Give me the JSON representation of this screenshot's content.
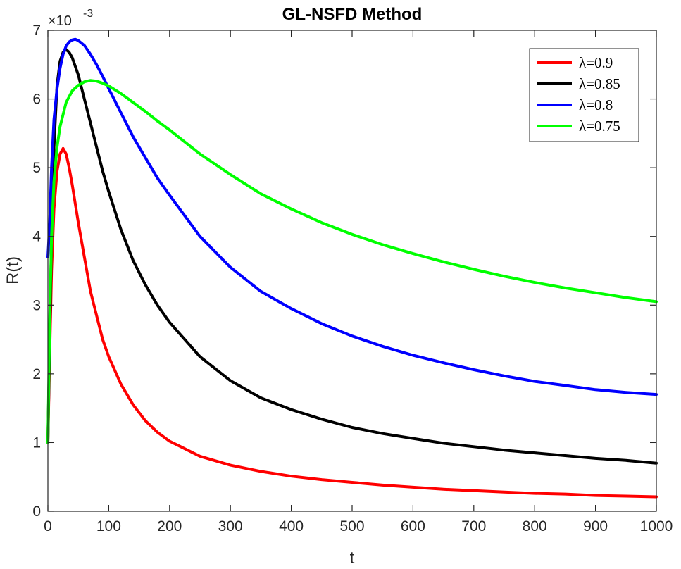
{
  "chart_data": {
    "type": "line",
    "title": "GL-NSFD Method",
    "xlabel": "t",
    "ylabel": "R(t)",
    "y_exponent_label": "×10",
    "y_exponent_power": "-3",
    "xlim": [
      0,
      1000
    ],
    "ylim": [
      0,
      7
    ],
    "xticks": [
      0,
      100,
      200,
      300,
      400,
      500,
      600,
      700,
      800,
      900,
      1000
    ],
    "yticks": [
      0,
      1,
      2,
      3,
      4,
      5,
      6,
      7
    ],
    "y_scale_factor": 0.001,
    "grid": false,
    "legend_position": "top-right",
    "series": [
      {
        "name": "λ=0.9",
        "color": "#ff0000",
        "x": [
          0,
          3,
          6,
          10,
          15,
          20,
          25,
          30,
          35,
          40,
          50,
          60,
          70,
          80,
          90,
          100,
          120,
          140,
          160,
          180,
          200,
          250,
          300,
          350,
          400,
          450,
          500,
          550,
          600,
          650,
          700,
          750,
          800,
          850,
          900,
          950,
          1000
        ],
        "y": [
          1.0,
          2.3,
          3.5,
          4.4,
          4.95,
          5.2,
          5.28,
          5.2,
          5.0,
          4.75,
          4.2,
          3.7,
          3.2,
          2.85,
          2.5,
          2.25,
          1.85,
          1.55,
          1.32,
          1.15,
          1.02,
          0.8,
          0.67,
          0.58,
          0.51,
          0.46,
          0.42,
          0.38,
          0.35,
          0.32,
          0.3,
          0.28,
          0.26,
          0.25,
          0.23,
          0.22,
          0.21
        ]
      },
      {
        "name": "λ=0.85",
        "color": "#000000",
        "x": [
          0,
          3,
          6,
          10,
          15,
          20,
          25,
          30,
          35,
          40,
          50,
          60,
          70,
          80,
          90,
          100,
          120,
          140,
          160,
          180,
          200,
          250,
          300,
          350,
          400,
          450,
          500,
          550,
          600,
          650,
          700,
          750,
          800,
          850,
          900,
          950,
          1000
        ],
        "y": [
          1.0,
          2.5,
          4.0,
          5.3,
          6.2,
          6.55,
          6.68,
          6.72,
          6.68,
          6.6,
          6.35,
          6.0,
          5.65,
          5.3,
          4.95,
          4.65,
          4.1,
          3.65,
          3.3,
          3.0,
          2.75,
          2.25,
          1.9,
          1.65,
          1.48,
          1.34,
          1.22,
          1.13,
          1.06,
          0.99,
          0.94,
          0.89,
          0.85,
          0.81,
          0.77,
          0.74,
          0.7
        ]
      },
      {
        "name": "λ=0.8",
        "color": "#0000ff",
        "x": [
          0,
          3,
          6,
          10,
          15,
          20,
          25,
          30,
          35,
          40,
          45,
          50,
          60,
          70,
          80,
          90,
          100,
          120,
          140,
          160,
          180,
          200,
          250,
          300,
          350,
          400,
          450,
          500,
          550,
          600,
          650,
          700,
          750,
          800,
          850,
          900,
          950,
          1000
        ],
        "y": [
          3.7,
          4.2,
          5.0,
          5.7,
          6.15,
          6.45,
          6.65,
          6.77,
          6.83,
          6.86,
          6.87,
          6.85,
          6.78,
          6.65,
          6.5,
          6.33,
          6.15,
          5.8,
          5.45,
          5.15,
          4.85,
          4.6,
          4.0,
          3.55,
          3.2,
          2.95,
          2.73,
          2.55,
          2.4,
          2.27,
          2.16,
          2.06,
          1.97,
          1.89,
          1.83,
          1.77,
          1.73,
          1.7
        ]
      },
      {
        "name": "λ=0.75",
        "color": "#00ff00",
        "x": [
          0,
          3,
          6,
          10,
          15,
          20,
          30,
          40,
          50,
          60,
          70,
          80,
          90,
          100,
          120,
          140,
          160,
          180,
          200,
          250,
          300,
          350,
          400,
          450,
          500,
          550,
          600,
          650,
          700,
          750,
          800,
          850,
          900,
          950,
          1000
        ],
        "y": [
          1.0,
          2.8,
          4.0,
          4.8,
          5.3,
          5.6,
          5.95,
          6.12,
          6.2,
          6.25,
          6.27,
          6.26,
          6.23,
          6.19,
          6.08,
          5.95,
          5.82,
          5.68,
          5.55,
          5.2,
          4.9,
          4.62,
          4.4,
          4.2,
          4.03,
          3.88,
          3.75,
          3.63,
          3.52,
          3.42,
          3.33,
          3.25,
          3.18,
          3.11,
          3.05
        ]
      }
    ]
  }
}
